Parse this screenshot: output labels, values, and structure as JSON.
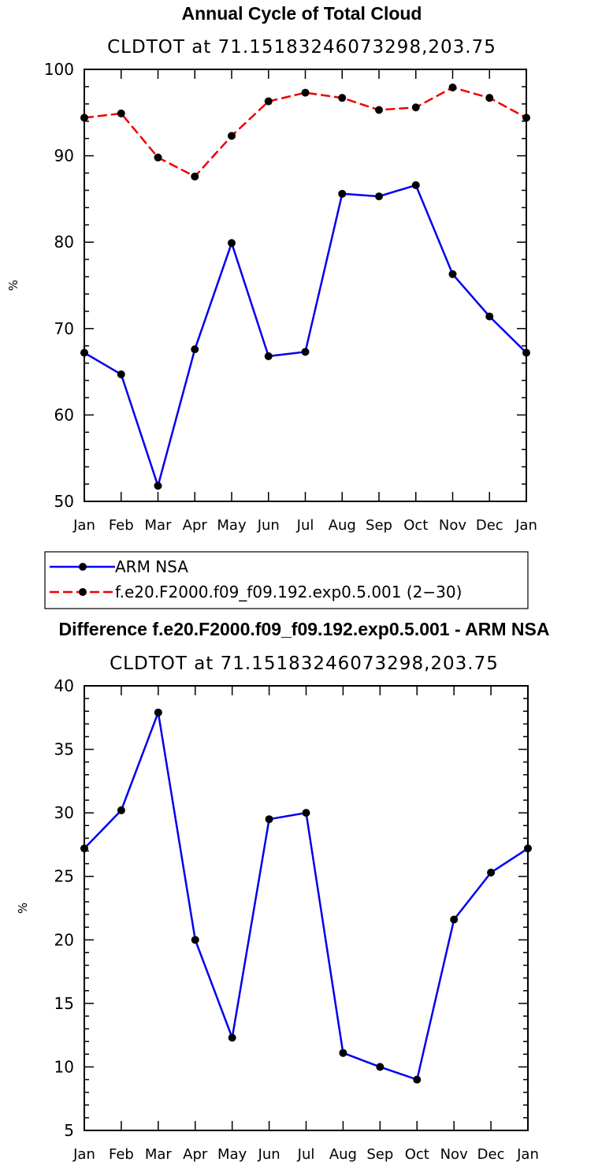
{
  "chart_data": [
    {
      "type": "line",
      "title": "Annual Cycle of Total Cloud",
      "subtitle": "CLDTOT at 71.15183246073298,203.75",
      "xlabel": "",
      "ylabel": "%",
      "categories": [
        "Jan",
        "Feb",
        "Mar",
        "Apr",
        "May",
        "Jun",
        "Jul",
        "Aug",
        "Sep",
        "Oct",
        "Nov",
        "Dec",
        "Jan"
      ],
      "ylim": [
        50,
        100
      ],
      "yticks": [
        50,
        60,
        70,
        80,
        90,
        100
      ],
      "series": [
        {
          "name": "ARM NSA",
          "color": "#0000ee",
          "dash": "solid",
          "values": [
            67.2,
            64.7,
            51.8,
            67.6,
            79.9,
            66.8,
            67.3,
            85.6,
            85.3,
            86.6,
            76.3,
            71.4,
            67.2
          ]
        },
        {
          "name": "f.e20.F2000.f09_f09.192.exp0.5.001 (2−30)",
          "color": "#ee0000",
          "dash": "dashed",
          "values": [
            94.4,
            94.9,
            89.8,
            87.6,
            92.3,
            96.3,
            97.3,
            96.7,
            95.3,
            95.6,
            97.9,
            96.7,
            94.4
          ]
        }
      ],
      "legend": "below"
    },
    {
      "type": "line",
      "title": "Difference f.e20.F2000.f09_f09.192.exp0.5.001 - ARM NSA",
      "subtitle": "CLDTOT at 71.15183246073298,203.75",
      "xlabel": "",
      "ylabel": "%",
      "categories": [
        "Jan",
        "Feb",
        "Mar",
        "Apr",
        "May",
        "Jun",
        "Jul",
        "Aug",
        "Sep",
        "Oct",
        "Nov",
        "Dec",
        "Jan"
      ],
      "ylim": [
        5,
        40
      ],
      "yticks": [
        5,
        10,
        15,
        20,
        25,
        30,
        35,
        40
      ],
      "series": [
        {
          "name": "Difference",
          "color": "#0000ee",
          "dash": "solid",
          "values": [
            27.2,
            30.2,
            37.9,
            20.0,
            12.3,
            29.5,
            30.0,
            11.1,
            10.0,
            9.0,
            21.6,
            25.3,
            27.2
          ]
        }
      ]
    }
  ]
}
